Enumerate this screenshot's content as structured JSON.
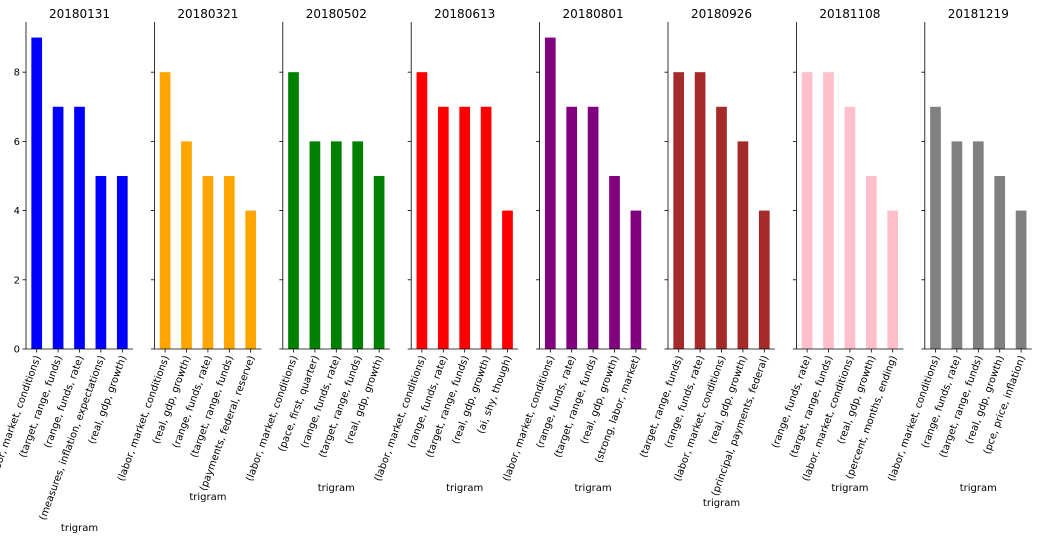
{
  "chart_data": [
    {
      "type": "bar",
      "title": "20180131",
      "color": "#0000ff",
      "xlabel": "trigram",
      "ylabel": "",
      "ylim": [
        0,
        9.45
      ],
      "yticks": [
        0,
        2,
        4,
        6,
        8
      ],
      "categories": [
        "(labor, market, conditions)",
        "(target, range, funds)",
        "(range, funds, rate)",
        "(measures, inflation, expectations)",
        "(real, gdp, growth)"
      ],
      "values": [
        9,
        7,
        7,
        5,
        5
      ]
    },
    {
      "type": "bar",
      "title": "20180321",
      "color": "#ffa500",
      "xlabel": "trigram",
      "ylabel": "",
      "ylim": [
        0,
        9.45
      ],
      "yticks": [
        0,
        2,
        4,
        6,
        8
      ],
      "categories": [
        "(labor, market, conditions)",
        "(real, gdp, growth)",
        "(range, funds, rate)",
        "(target, range, funds)",
        "(payments, federal, reserve)"
      ],
      "values": [
        8,
        6,
        5,
        5,
        4
      ]
    },
    {
      "type": "bar",
      "title": "20180502",
      "color": "#008000",
      "xlabel": "trigram",
      "ylabel": "",
      "ylim": [
        0,
        9.45
      ],
      "yticks": [
        0,
        2,
        4,
        6,
        8
      ],
      "categories": [
        "(labor, market, conditions)",
        "(pace, first, quarter)",
        "(range, funds, rate)",
        "(target, range, funds)",
        "(real, gdp, growth)"
      ],
      "values": [
        8,
        6,
        6,
        6,
        5
      ]
    },
    {
      "type": "bar",
      "title": "20180613",
      "color": "#ff0000",
      "xlabel": "trigram",
      "ylabel": "",
      "ylim": [
        0,
        9.45
      ],
      "yticks": [
        0,
        2,
        4,
        6,
        8
      ],
      "categories": [
        "(labor, market, conditions)",
        "(range, funds, rate)",
        "(target, range, funds)",
        "(real, gdp, growth)",
        "(ai, shy, though)"
      ],
      "values": [
        8,
        7,
        7,
        7,
        4
      ]
    },
    {
      "type": "bar",
      "title": "20180801",
      "color": "#800080",
      "xlabel": "trigram",
      "ylabel": "",
      "ylim": [
        0,
        9.45
      ],
      "yticks": [
        0,
        2,
        4,
        6,
        8
      ],
      "categories": [
        "(labor, market, conditions)",
        "(range, funds, rate)",
        "(target, range, funds)",
        "(real, gdp, growth)",
        "(strong, labor, market)"
      ],
      "values": [
        9,
        7,
        7,
        5,
        4
      ]
    },
    {
      "type": "bar",
      "title": "20180926",
      "color": "#a52a2a",
      "xlabel": "trigram",
      "ylabel": "",
      "ylim": [
        0,
        9.45
      ],
      "yticks": [
        0,
        2,
        4,
        6,
        8
      ],
      "categories": [
        "(target, range, funds)",
        "(range, funds, rate)",
        "(labor, market, conditions)",
        "(real, gdp, growth)",
        "(principal, payments, federal)"
      ],
      "values": [
        8,
        8,
        7,
        6,
        4
      ]
    },
    {
      "type": "bar",
      "title": "20181108",
      "color": "#ffc0cb",
      "xlabel": "trigram",
      "ylabel": "",
      "ylim": [
        0,
        9.45
      ],
      "yticks": [
        0,
        2,
        4,
        6,
        8
      ],
      "categories": [
        "(range, funds, rate)",
        "(target, range, funds)",
        "(labor, market, conditions)",
        "(real, gdp, growth)",
        "(percent, months, ending)"
      ],
      "values": [
        8,
        8,
        7,
        5,
        4
      ]
    },
    {
      "type": "bar",
      "title": "20181219",
      "color": "#808080",
      "xlabel": "trigram",
      "ylabel": "",
      "ylim": [
        0,
        9.45
      ],
      "yticks": [
        0,
        2,
        4,
        6,
        8
      ],
      "categories": [
        "(labor, market, conditions)",
        "(range, funds, rate)",
        "(target, range, funds)",
        "(real, gdp, growth)",
        "(pce, price, inflation)"
      ],
      "values": [
        7,
        6,
        6,
        5,
        4
      ]
    }
  ]
}
